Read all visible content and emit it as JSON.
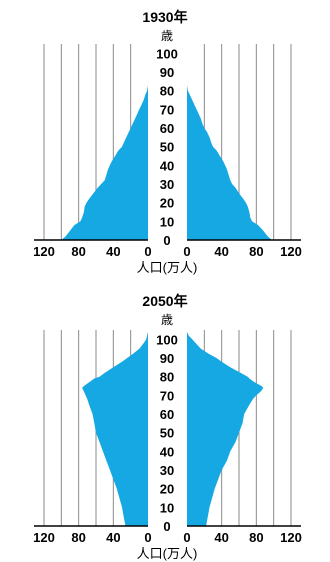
{
  "chart_data": [
    {
      "type": "bar",
      "title": "1930年",
      "ylabel": "歳",
      "xlabel": "人口(万人)",
      "y_ticks": [
        "0",
        "10",
        "20",
        "30",
        "40",
        "50",
        "60",
        "70",
        "80",
        "90",
        "100"
      ],
      "x_ticks": [
        "120",
        "80",
        "40",
        "0",
        "0",
        "40",
        "80",
        "120"
      ],
      "xlim": [
        0,
        120
      ],
      "ylim": [
        0,
        105
      ],
      "age": [
        0,
        2,
        5,
        8,
        10,
        12,
        15,
        18,
        20,
        22,
        25,
        28,
        30,
        32,
        35,
        38,
        40,
        42,
        45,
        48,
        50,
        52,
        55,
        58,
        60,
        62,
        65,
        68,
        70,
        72,
        75,
        78,
        80,
        83
      ],
      "male": [
        100,
        95,
        90,
        85,
        78,
        76,
        74,
        73,
        71,
        68,
        63,
        58,
        54,
        50,
        48,
        46,
        44,
        42,
        38,
        34,
        30,
        28,
        25,
        22,
        20,
        18,
        15,
        12,
        10,
        8,
        5,
        3,
        1,
        0
      ],
      "female": [
        98,
        93,
        88,
        82,
        75,
        73,
        72,
        70,
        68,
        65,
        60,
        56,
        52,
        50,
        48,
        46,
        44,
        42,
        38,
        34,
        30,
        28,
        26,
        23,
        20,
        18,
        16,
        13,
        11,
        9,
        6,
        3,
        1,
        0
      ]
    },
    {
      "type": "bar",
      "title": "2050年",
      "ylabel": "歳",
      "xlabel": "人口(万人)",
      "y_ticks": [
        "0",
        "10",
        "20",
        "30",
        "40",
        "50",
        "60",
        "70",
        "80",
        "90",
        "100"
      ],
      "x_ticks": [
        "120",
        "80",
        "40",
        "0",
        "0",
        "40",
        "80",
        "120"
      ],
      "xlim": [
        0,
        120
      ],
      "ylim": [
        0,
        105
      ],
      "age": [
        0,
        5,
        10,
        15,
        20,
        25,
        30,
        35,
        40,
        45,
        50,
        55,
        60,
        65,
        68,
        70,
        72,
        74,
        75,
        77,
        79,
        80,
        82,
        85,
        88,
        90,
        92,
        95,
        98,
        100,
        102,
        104
      ],
      "male": [
        26,
        28,
        30,
        33,
        36,
        40,
        44,
        48,
        52,
        56,
        60,
        62,
        64,
        68,
        70,
        72,
        74,
        76,
        74,
        68,
        62,
        56,
        50,
        40,
        30,
        24,
        18,
        10,
        5,
        2,
        1,
        0
      ],
      "female": [
        22,
        24,
        26,
        29,
        32,
        36,
        40,
        46,
        50,
        56,
        60,
        64,
        66,
        72,
        76,
        80,
        85,
        88,
        86,
        78,
        72,
        70,
        62,
        50,
        40,
        34,
        26,
        16,
        10,
        6,
        2,
        0
      ]
    }
  ]
}
